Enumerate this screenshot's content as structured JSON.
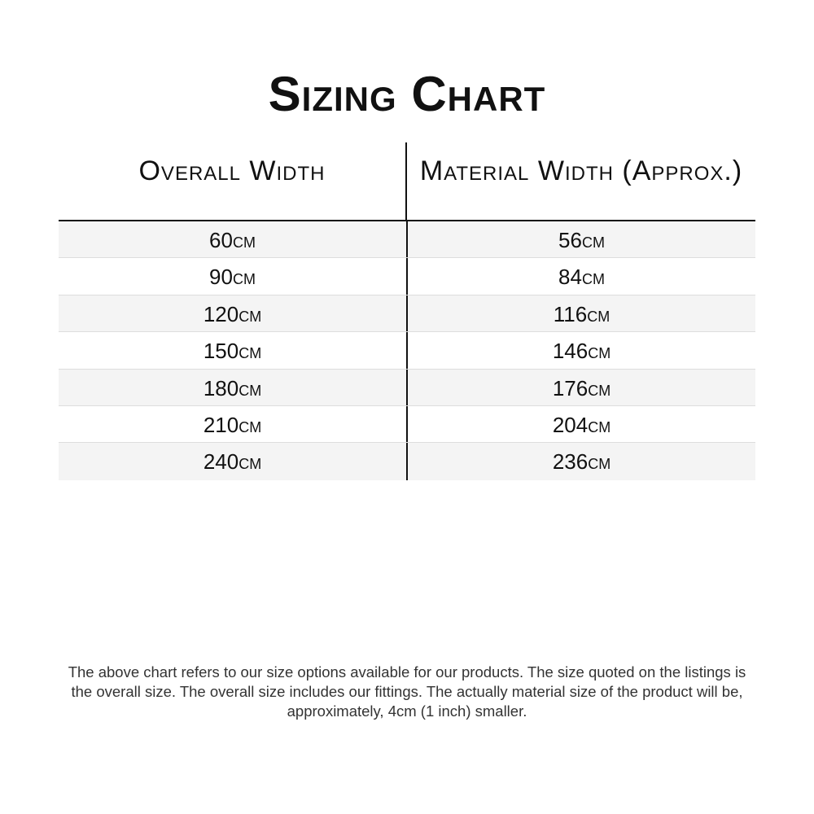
{
  "title": "Sizing Chart",
  "table": {
    "headers": [
      "Overall Width",
      "Material Width (Approx.)"
    ],
    "rows": [
      [
        "60cm",
        "56cm"
      ],
      [
        "90cm",
        "84cm"
      ],
      [
        "120cm",
        "116cm"
      ],
      [
        "150cm",
        "146cm"
      ],
      [
        "180cm",
        "176cm"
      ],
      [
        "210cm",
        "204cm"
      ],
      [
        "240cm",
        "236cm"
      ]
    ]
  },
  "note": "The above chart refers to our size options available for our products. The size quoted on the listings is the overall size. The overall size includes our fittings. The actually material size of the product will be, approximately, 4cm (1 inch) smaller."
}
